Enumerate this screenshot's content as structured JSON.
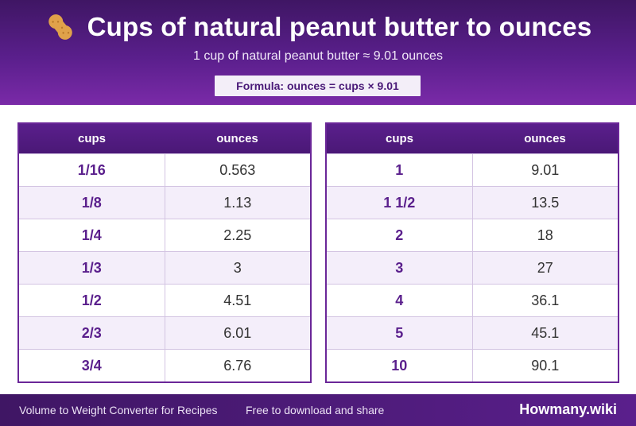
{
  "header": {
    "title": "Cups of natural peanut butter to ounces",
    "subtitle": "1 cup of natural peanut butter ≈ 9.01 ounces",
    "formula": "Formula: ounces = cups × 9.01",
    "icon": "peanut-icon"
  },
  "tables": {
    "left": {
      "col_cups": "cups",
      "col_oz": "ounces",
      "rows": [
        {
          "cups": "1/16",
          "oz": "0.563"
        },
        {
          "cups": "1/8",
          "oz": "1.13"
        },
        {
          "cups": "1/4",
          "oz": "2.25"
        },
        {
          "cups": "1/3",
          "oz": "3"
        },
        {
          "cups": "1/2",
          "oz": "4.51"
        },
        {
          "cups": "2/3",
          "oz": "6.01"
        },
        {
          "cups": "3/4",
          "oz": "6.76"
        }
      ]
    },
    "right": {
      "col_cups": "cups",
      "col_oz": "ounces",
      "rows": [
        {
          "cups": "1",
          "oz": "9.01"
        },
        {
          "cups": "1 1/2",
          "oz": "13.5"
        },
        {
          "cups": "2",
          "oz": "18"
        },
        {
          "cups": "3",
          "oz": "27"
        },
        {
          "cups": "4",
          "oz": "36.1"
        },
        {
          "cups": "5",
          "oz": "45.1"
        },
        {
          "cups": "10",
          "oz": "90.1"
        }
      ]
    }
  },
  "footer": {
    "left": "Volume to Weight Converter for Recipes",
    "mid": "Free to download and share",
    "brand": "Howmany.wiki"
  },
  "colors": {
    "accent": "#5a1f8c",
    "header_dark": "#3f1664",
    "row_alt": "#f4eefa"
  }
}
